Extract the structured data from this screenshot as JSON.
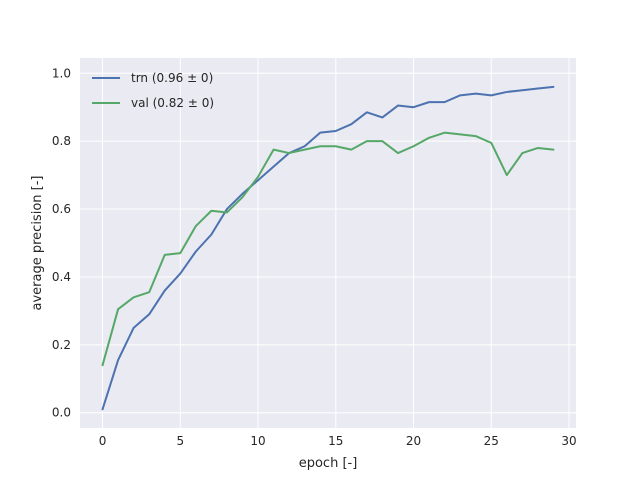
{
  "chart_data": {
    "type": "line",
    "xlabel": "epoch [-]",
    "ylabel": "average precision [-]",
    "xlim": [
      -1.45,
      30.45
    ],
    "ylim": [
      -0.045,
      1.045
    ],
    "xticks": [
      0,
      5,
      10,
      15,
      20,
      25,
      30
    ],
    "yticks": [
      0.0,
      0.2,
      0.4,
      0.6,
      0.8,
      1.0
    ],
    "xtick_labels": [
      "0",
      "5",
      "10",
      "15",
      "20",
      "25",
      "30"
    ],
    "ytick_labels": [
      "0.0",
      "0.2",
      "0.4",
      "0.6",
      "0.8",
      "1.0"
    ],
    "grid": true,
    "legend_position": "top-left",
    "x": [
      0,
      1,
      2,
      3,
      4,
      5,
      6,
      7,
      8,
      9,
      10,
      11,
      12,
      13,
      14,
      15,
      16,
      17,
      18,
      19,
      20,
      21,
      22,
      23,
      24,
      25,
      26,
      27,
      28,
      29
    ],
    "series": [
      {
        "name": "trn (0.96 ± 0)",
        "color": "#4c72b0",
        "values": [
          0.01,
          0.155,
          0.25,
          0.29,
          0.36,
          0.41,
          0.475,
          0.525,
          0.6,
          0.645,
          0.685,
          0.725,
          0.765,
          0.785,
          0.825,
          0.83,
          0.85,
          0.885,
          0.87,
          0.905,
          0.9,
          0.915,
          0.915,
          0.935,
          0.94,
          0.935,
          0.945,
          0.95,
          0.955,
          0.96
        ]
      },
      {
        "name": "val (0.82 ± 0)",
        "color": "#55a868",
        "values": [
          0.14,
          0.305,
          0.34,
          0.355,
          0.465,
          0.47,
          0.55,
          0.595,
          0.59,
          0.635,
          0.695,
          0.775,
          0.765,
          0.775,
          0.785,
          0.785,
          0.775,
          0.8,
          0.8,
          0.765,
          0.785,
          0.81,
          0.825,
          0.82,
          0.815,
          0.795,
          0.7,
          0.765,
          0.78,
          0.775
        ]
      }
    ]
  },
  "colors": {
    "plot_background": "#eaeaf2",
    "grid": "#ffffff",
    "text": "#262626"
  }
}
